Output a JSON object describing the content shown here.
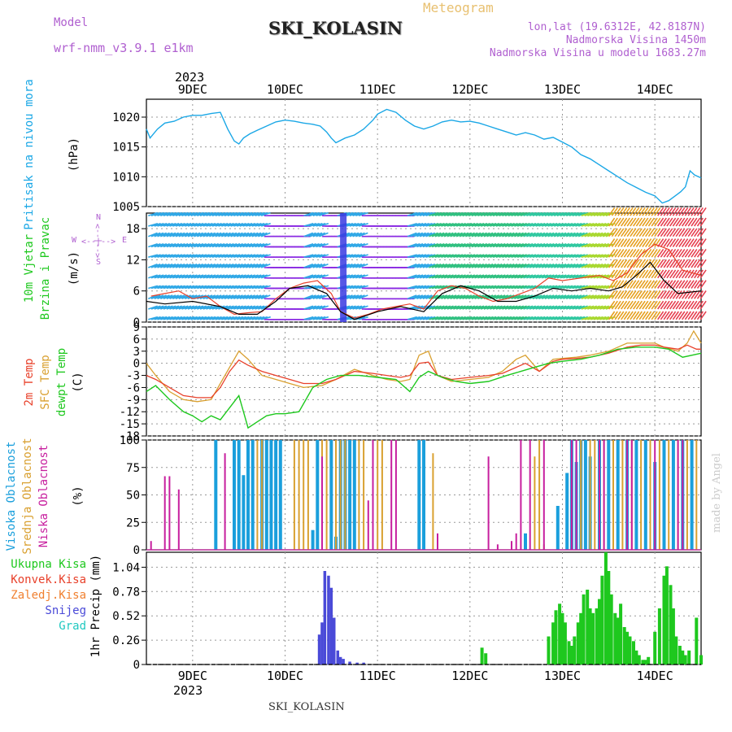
{
  "header": {
    "model_label": "Model",
    "model_name": "wrf-nmm_v3.9.1  e1km",
    "title": "SKI_KOLASIN",
    "meteogram": "Meteogram",
    "lonlat": "lon,lat (19.6312E, 42.8187N)",
    "elevation": "Nadmorska Visina 1450m",
    "model_elevation": "Nadmorska Visina u modelu 1683.27m",
    "footer": "SKI_KOLASIN",
    "credit": "made by Angel",
    "year": "2023"
  },
  "colors": {
    "pressure": "#1aa7e6",
    "wind_speed": "#000000",
    "wind_gust": "#e8402a",
    "t2m": "#e8402a",
    "tsfc": "#d9a030",
    "dewpt": "#1ec81e",
    "high_cloud": "#1a9fdc",
    "mid_cloud": "#d9a030",
    "low_cloud": "#c71e9e",
    "precip_total": "#1ec81e",
    "precip_snow": "#4a4ad8",
    "label_purple": "#b060d0"
  },
  "chart_data": [
    {
      "type": "line",
      "panel": "pressure",
      "ylabel_main": "Pritisak na nivou mora",
      "ylabel_unit": "(hPa)",
      "x_ticks": [
        "9DEC",
        "10DEC",
        "11DEC",
        "12DEC",
        "13DEC",
        "14DEC"
      ],
      "x_range_days": [
        8.5,
        14.5
      ],
      "ylim": [
        1005,
        1023
      ],
      "yticks": [
        1005,
        1010,
        1015,
        1020
      ],
      "series": [
        {
          "x": [
            8.5,
            8.54,
            8.62,
            8.7,
            8.8,
            8.9,
            9.0,
            9.1,
            9.2,
            9.3,
            9.38,
            9.45,
            9.5,
            9.55,
            9.62,
            9.7,
            9.8,
            9.9,
            10.0,
            10.1,
            10.2,
            10.3,
            10.38,
            10.45,
            10.5,
            10.55,
            10.65,
            10.75,
            10.85,
            10.95,
            11.0,
            11.1,
            11.2,
            11.3,
            11.4,
            11.5,
            11.6,
            11.7,
            11.8,
            11.9,
            12.0,
            12.1,
            12.2,
            12.3,
            12.4,
            12.5,
            12.6,
            12.7,
            12.8,
            12.9,
            13.0,
            13.1,
            13.2,
            13.3,
            13.4,
            13.5,
            13.6,
            13.7,
            13.8,
            13.9,
            14.0,
            14.08,
            14.15,
            14.22,
            14.28,
            14.33,
            14.38,
            14.43,
            14.5
          ],
          "y": [
            1018,
            1016.5,
            1018,
            1019,
            1019.3,
            1020,
            1020.3,
            1020.3,
            1020.6,
            1020.8,
            1018,
            1016,
            1015.5,
            1016.5,
            1017.2,
            1017.8,
            1018.5,
            1019.2,
            1019.5,
            1019.3,
            1019,
            1018.8,
            1018.5,
            1017.5,
            1016.5,
            1015.7,
            1016.5,
            1017,
            1018,
            1019.5,
            1020.5,
            1021.3,
            1020.8,
            1019.5,
            1018.5,
            1018,
            1018.5,
            1019.2,
            1019.5,
            1019.2,
            1019.3,
            1019,
            1018.5,
            1018,
            1017.5,
            1017,
            1017.4,
            1017,
            1016.3,
            1016.6,
            1015.8,
            1015,
            1013.7,
            1013,
            1012,
            1011,
            1010,
            1009,
            1008.2,
            1007.4,
            1006.8,
            1005.6,
            1006,
            1006.8,
            1007.5,
            1008.3,
            1011,
            1010.3,
            1009.8
          ]
        }
      ]
    },
    {
      "type": "line",
      "panel": "wind",
      "ylabel_main": "10m Vjetar",
      "ylabel_main2": "Brzina i Pravac",
      "ylabel_unit": "(m/s)",
      "compass": [
        "N",
        "W",
        "E",
        "S"
      ],
      "ylim": [
        0,
        21
      ],
      "yticks": [
        0,
        6,
        12,
        18
      ],
      "series": [
        {
          "name": "speed",
          "x": [
            8.5,
            8.7,
            9.0,
            9.3,
            9.5,
            9.7,
            9.9,
            10.05,
            10.25,
            10.45,
            10.6,
            10.75,
            11.0,
            11.25,
            11.5,
            11.7,
            11.9,
            12.1,
            12.3,
            12.5,
            12.7,
            12.9,
            13.1,
            13.3,
            13.5,
            13.65,
            13.8,
            13.95,
            14.1,
            14.25,
            14.5
          ],
          "y": [
            4,
            3.5,
            4,
            3,
            1.5,
            1.5,
            4,
            6.5,
            7,
            5.5,
            2,
            0.5,
            2,
            3,
            2,
            5.5,
            7,
            6,
            4,
            4,
            5,
            6.5,
            6,
            6.5,
            6,
            6.8,
            9,
            11.5,
            8,
            5.5,
            6
          ]
        },
        {
          "name": "gust",
          "x": [
            8.55,
            8.7,
            8.85,
            9.0,
            9.15,
            9.3,
            9.45,
            9.6,
            9.75,
            9.9,
            10.05,
            10.2,
            10.35,
            10.5,
            10.6,
            10.75,
            10.9,
            11.05,
            11.2,
            11.35,
            11.5,
            11.65,
            11.8,
            11.95,
            12.1,
            12.25,
            12.4,
            12.55,
            12.7,
            12.85,
            13.0,
            13.2,
            13.4,
            13.55,
            13.7,
            13.85,
            14.0,
            14.15,
            14.3,
            14.5
          ],
          "y": [
            5,
            5.5,
            6,
            4.5,
            5,
            3,
            1.5,
            1.8,
            2,
            4.5,
            6.5,
            7.5,
            8,
            5.5,
            2,
            0.8,
            1.5,
            2.5,
            3,
            3.5,
            2.5,
            6,
            7,
            6.5,
            5,
            4,
            4.5,
            5.5,
            6.5,
            8.5,
            8,
            8.5,
            9,
            8,
            9.5,
            13,
            15,
            14,
            10,
            9
          ]
        }
      ]
    },
    {
      "type": "line",
      "panel": "temperature",
      "ylabel_main": "2m Temp",
      "ylabel_main2": "SFC Temp",
      "ylabel_main3": "dewpt Temp",
      "ylabel_unit": "(C)",
      "ylim": [
        -18,
        9
      ],
      "yticks": [
        -18,
        -15,
        -12,
        -9,
        -6,
        -3,
        0,
        3,
        6,
        9
      ],
      "series": [
        {
          "name": "2m Temp",
          "x": [
            8.5,
            8.6,
            8.75,
            8.9,
            9.05,
            9.2,
            9.3,
            9.4,
            9.5,
            9.6,
            9.75,
            9.9,
            10.05,
            10.2,
            10.4,
            10.55,
            10.75,
            10.95,
            11.1,
            11.25,
            11.35,
            11.45,
            11.55,
            11.65,
            11.8,
            12.0,
            12.2,
            12.35,
            12.5,
            12.6,
            12.75,
            12.9,
            13.0,
            13.15,
            13.3,
            13.5,
            13.7,
            13.85,
            14.0,
            14.1,
            14.25,
            14.35,
            14.45,
            14.5
          ],
          "y": [
            -3,
            -4,
            -6,
            -8,
            -8.5,
            -8.5,
            -6,
            -2,
            0.8,
            -0.5,
            -2,
            -3,
            -4,
            -5,
            -5,
            -4,
            -2,
            -2.5,
            -3,
            -3.5,
            -3,
            0,
            0.3,
            -3,
            -4,
            -3.5,
            -3,
            -2.5,
            -1,
            0,
            -2,
            0.5,
            1,
            1.2,
            1.5,
            2.5,
            4,
            4.5,
            4.5,
            4,
            3.5,
            4.5,
            3.5,
            3.5
          ]
        },
        {
          "name": "SFC Temp",
          "x": [
            8.5,
            8.6,
            8.75,
            8.9,
            9.05,
            9.2,
            9.3,
            9.4,
            9.5,
            9.6,
            9.75,
            9.9,
            10.05,
            10.2,
            10.4,
            10.55,
            10.75,
            10.95,
            11.1,
            11.25,
            11.35,
            11.45,
            11.55,
            11.65,
            11.8,
            12.0,
            12.2,
            12.35,
            12.5,
            12.6,
            12.75,
            12.9,
            13.0,
            13.15,
            13.3,
            13.5,
            13.7,
            13.85,
            14.0,
            14.1,
            14.25,
            14.35,
            14.42,
            14.5
          ],
          "y": [
            0,
            -3,
            -7,
            -9,
            -9.5,
            -9,
            -5,
            -1,
            3,
            1,
            -3,
            -4,
            -5,
            -6,
            -5.5,
            -4,
            -1.5,
            -3,
            -4,
            -4.5,
            -4,
            2,
            3,
            -3,
            -4.5,
            -4,
            -3.5,
            -2,
            1,
            2,
            -2,
            1,
            1.2,
            1.5,
            2,
            3,
            5,
            5,
            5,
            4,
            3,
            5,
            8,
            5
          ]
        },
        {
          "name": "dewpt Temp",
          "x": [
            8.5,
            8.6,
            8.75,
            8.9,
            9.0,
            9.1,
            9.2,
            9.3,
            9.4,
            9.5,
            9.6,
            9.7,
            9.8,
            9.9,
            10.0,
            10.15,
            10.3,
            10.45,
            10.6,
            10.8,
            11.0,
            11.2,
            11.35,
            11.45,
            11.55,
            11.7,
            11.85,
            12.0,
            12.2,
            12.4,
            12.55,
            12.7,
            12.85,
            13.0,
            13.2,
            13.4,
            13.6,
            13.8,
            14.0,
            14.15,
            14.3,
            14.5
          ],
          "y": [
            -7,
            -5.5,
            -9,
            -12,
            -13,
            -14.5,
            -13,
            -14,
            -11,
            -8,
            -16,
            -14.5,
            -13,
            -12.5,
            -12.5,
            -12,
            -6,
            -4,
            -3,
            -3,
            -3.5,
            -4,
            -7,
            -3.5,
            -2,
            -3.5,
            -4.5,
            -5,
            -4.5,
            -3,
            -2,
            -1,
            0,
            0.5,
            1,
            2,
            3.5,
            4,
            4,
            3.5,
            1.5,
            2.5
          ]
        }
      ]
    },
    {
      "type": "bar",
      "panel": "cloud",
      "ylabel_main": "Visoka Oblacnost",
      "ylabel_main2": "Srednja Oblacnost",
      "ylabel_main3": "Niska Oblacnost",
      "ylabel_unit": "(%)",
      "ylim": [
        0,
        100
      ],
      "yticks": [
        0,
        25,
        50,
        75,
        100
      ],
      "series": [
        {
          "name": "Visoka Oblacnost",
          "x": [
            9.25,
            9.45,
            9.5,
            9.55,
            9.6,
            9.65,
            9.75,
            9.8,
            9.85,
            9.9,
            9.95,
            10.3,
            10.35,
            10.5,
            10.55,
            10.6,
            10.65,
            10.7,
            10.75,
            11.45,
            11.5,
            12.6,
            12.95,
            13.05,
            13.1,
            13.15,
            13.2,
            13.25,
            13.3,
            13.4,
            13.5,
            13.6,
            13.7,
            13.8,
            13.9,
            14.0,
            14.1,
            14.2,
            14.3,
            14.4
          ],
          "y": [
            100,
            100,
            100,
            68,
            100,
            100,
            100,
            100,
            100,
            100,
            100,
            18,
            100,
            100,
            12,
            100,
            100,
            100,
            100,
            100,
            100,
            15,
            40,
            70,
            100,
            80,
            100,
            100,
            85,
            100,
            100,
            100,
            100,
            100,
            100,
            80,
            100,
            100,
            100,
            100
          ]
        },
        {
          "name": "Srednja Oblacnost",
          "x": [
            9.7,
            9.75,
            10.1,
            10.15,
            10.2,
            10.25,
            10.4,
            10.45,
            10.55,
            10.6,
            10.65,
            10.8,
            10.85,
            11.0,
            11.05,
            11.6,
            12.7,
            12.75,
            12.8,
            13.2,
            13.3,
            13.35,
            13.45,
            13.55,
            13.65,
            13.75,
            13.85,
            13.95,
            14.05,
            14.15,
            14.25,
            14.35,
            14.45
          ],
          "y": [
            100,
            100,
            100,
            100,
            100,
            100,
            100,
            100,
            100,
            100,
            100,
            100,
            100,
            100,
            100,
            88,
            85,
            100,
            5,
            100,
            100,
            100,
            100,
            100,
            100,
            100,
            100,
            100,
            100,
            100,
            100,
            100,
            100
          ]
        },
        {
          "name": "Niska Oblacnost",
          "x": [
            8.55,
            8.7,
            8.75,
            8.85,
            9.35,
            10.4,
            10.9,
            10.95,
            11.15,
            11.2,
            11.65,
            12.2,
            12.3,
            12.45,
            12.5,
            12.55,
            12.65,
            12.8,
            13.1,
            13.15,
            13.4,
            13.45,
            13.7,
            13.75,
            14.0,
            14.25,
            14.3
          ],
          "y": [
            8,
            67,
            67,
            55,
            88,
            85,
            45,
            100,
            100,
            100,
            15,
            85,
            5,
            8,
            15,
            100,
            100,
            100,
            100,
            100,
            100,
            100,
            100,
            100,
            100,
            100,
            100
          ]
        }
      ]
    },
    {
      "type": "bar",
      "panel": "precip",
      "ylabel_main": "1hr Precip",
      "ylabel_unit": "(mm)",
      "legend": [
        "Ukupna Kisa",
        "Konvek.Kisa",
        "Zaledj.Kisa",
        "Snijeg",
        "Grad"
      ],
      "ylim": [
        0,
        1.2
      ],
      "yticks": [
        0,
        0.26,
        0.52,
        0.78,
        1.04
      ],
      "series": [
        {
          "name": "Ukupna Kisa",
          "x": [
            12.13,
            12.17,
            12.85,
            12.9,
            12.93,
            12.97,
            13.0,
            13.03,
            13.07,
            13.1,
            13.13,
            13.17,
            13.2,
            13.23,
            13.27,
            13.3,
            13.33,
            13.37,
            13.4,
            13.43,
            13.47,
            13.5,
            13.53,
            13.57,
            13.6,
            13.63,
            13.67,
            13.7,
            13.73,
            13.77,
            13.8,
            13.83,
            13.87,
            13.9,
            13.93,
            14.0,
            14.05,
            14.1,
            14.13,
            14.17,
            14.2,
            14.23,
            14.27,
            14.3,
            14.33,
            14.37,
            14.45,
            14.5
          ],
          "y": [
            0.18,
            0.12,
            0.3,
            0.45,
            0.58,
            0.65,
            0.55,
            0.45,
            0.25,
            0.2,
            0.3,
            0.45,
            0.55,
            0.75,
            0.8,
            0.6,
            0.55,
            0.6,
            0.7,
            0.95,
            1.2,
            1.0,
            0.75,
            0.55,
            0.5,
            0.65,
            0.4,
            0.35,
            0.3,
            0.25,
            0.15,
            0.1,
            0.05,
            0.05,
            0.08,
            0.35,
            0.6,
            0.95,
            1.05,
            0.85,
            0.6,
            0.3,
            0.2,
            0.15,
            0.1,
            0.15,
            0.5,
            0.1
          ]
        },
        {
          "name": "Snijeg",
          "x": [
            10.37,
            10.4,
            10.43,
            10.47,
            10.5,
            10.53,
            10.57,
            10.6,
            10.63,
            10.7,
            10.78,
            10.85
          ],
          "y": [
            0.32,
            0.45,
            1.0,
            0.95,
            0.82,
            0.5,
            0.15,
            0.08,
            0.06,
            0.03,
            0.02,
            0.02
          ]
        }
      ]
    }
  ]
}
